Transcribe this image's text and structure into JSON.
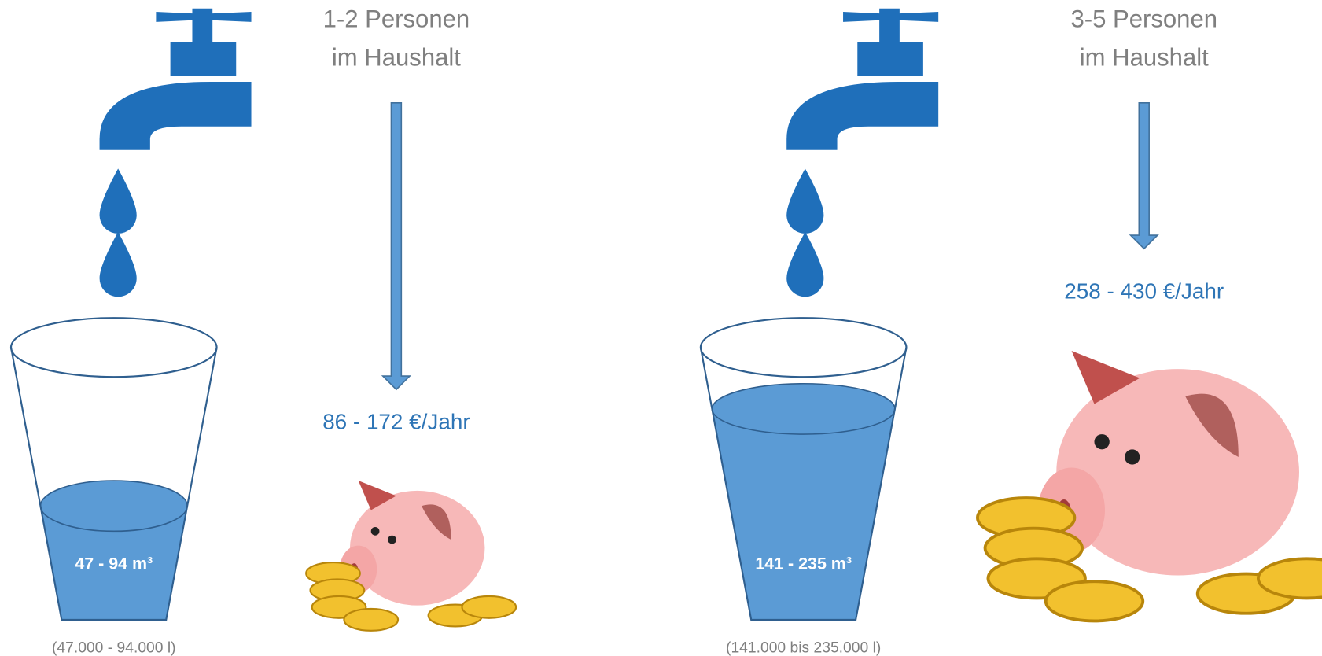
{
  "panels": [
    {
      "title_line1": "1-2 Personen",
      "title_line2": "im Haushalt",
      "volume": "47 - 94 m³",
      "liters": "(47.000 - 94.000 l)",
      "cost": "86 - 172 €/Jahr"
    },
    {
      "title_line1": "3-5 Personen",
      "title_line2": "im Haushalt",
      "volume": "141 - 235 m³",
      "liters": "(141.000 bis 235.000 l)",
      "cost": "258 - 430 €/Jahr"
    }
  ]
}
